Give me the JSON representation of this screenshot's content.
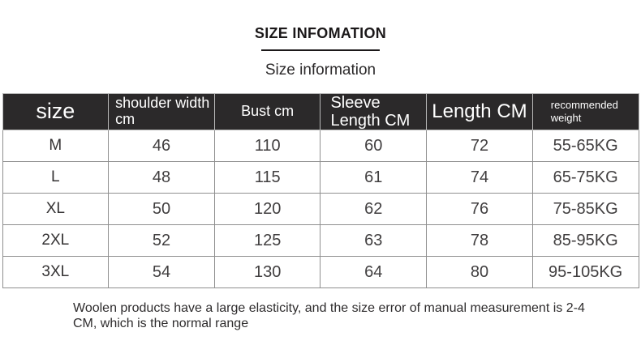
{
  "header": {
    "title": "SIZE INFOMATION",
    "subtitle": "Size information"
  },
  "size_table": {
    "columns": [
      {
        "label": "size"
      },
      {
        "label": "shoulder width cm"
      },
      {
        "label": "Bust cm"
      },
      {
        "label": "Sleeve Length CM"
      },
      {
        "label": "Length CM"
      },
      {
        "label": "recommended weight"
      }
    ],
    "rows": [
      [
        "M",
        "46",
        "110",
        "60",
        "72",
        "55-65KG"
      ],
      [
        "L",
        "48",
        "115",
        "61",
        "74",
        "65-75KG"
      ],
      [
        "XL",
        "50",
        "120",
        "62",
        "76",
        "75-85KG"
      ],
      [
        "2XL",
        "52",
        "125",
        "63",
        "78",
        "85-95KG"
      ],
      [
        "3XL",
        "54",
        "130",
        "64",
        "80",
        "95-105KG"
      ]
    ]
  },
  "footnote": {
    "lines": [
      "Woolen products have a large elasticity, and the size error of manual measurement is 2-4",
      "CM, which is the normal range"
    ],
    "full_text": "Woolen products have a large elasticity, and the size error of manual measurement is 2-4 CM, which is the normal range"
  },
  "colors": {
    "table_header_bg": "#2b292a",
    "table_header_text": "#ffffff",
    "title_text": "#1b1819",
    "body_text": "#403e3f",
    "table_border": "#8f8f8f",
    "background": "#ffffff"
  }
}
